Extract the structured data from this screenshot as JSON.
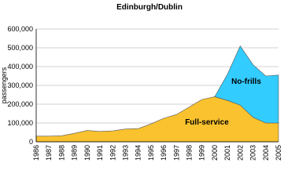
{
  "chart_data": {
    "type": "stacked-area",
    "title": "Edinburgh/Dublin",
    "y_label": "passengers",
    "categories": [
      "1986",
      "1987",
      "1988",
      "1989",
      "1990",
      "1991",
      "1992",
      "1993",
      "1994",
      "1995",
      "1996",
      "1997",
      "1998",
      "1999",
      "2000",
      "2001",
      "2002",
      "2003",
      "2004",
      "2005"
    ],
    "series": [
      {
        "name": "Full-service",
        "color": "#f9c22e",
        "values": [
          30000,
          30000,
          32000,
          45000,
          60000,
          55000,
          58000,
          68000,
          70000,
          95000,
          125000,
          145000,
          185000,
          225000,
          240000,
          220000,
          195000,
          130000,
          100000,
          100000
        ]
      },
      {
        "name": "No-frills",
        "color": "#33ccff",
        "values": [
          null,
          null,
          null,
          null,
          null,
          null,
          null,
          null,
          null,
          null,
          null,
          null,
          null,
          null,
          0,
          140000,
          315000,
          280000,
          250000,
          255000
        ]
      }
    ],
    "ylim": [
      0,
      600000
    ],
    "yticks": [
      0,
      {
        "value": 100000,
        "label": "100,000"
      },
      {
        "value": 200000,
        "label": "200,000"
      },
      {
        "value": 300000,
        "label": "300,000"
      },
      {
        "value": 400000,
        "label": "400,000"
      },
      {
        "value": 500000,
        "label": "500,000"
      },
      {
        "value": 600000,
        "label": "600,000"
      }
    ],
    "grid": true
  }
}
